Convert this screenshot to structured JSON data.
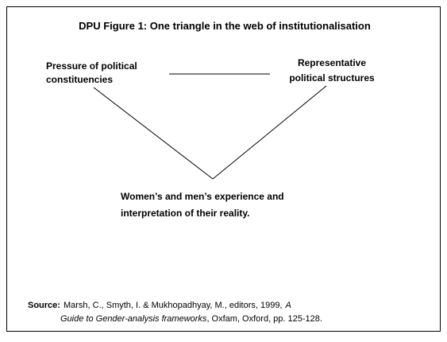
{
  "title": "DPU Figure 1: One triangle in the web of institutionalisation",
  "nodes": [
    {
      "lines": [
        "Pressure of political",
        "constituencies"
      ]
    },
    {
      "lines": [
        "Representative",
        "political structures"
      ]
    },
    {
      "lines": [
        "Women’s and men’s experience and",
        "interpretation of their reality."
      ]
    }
  ],
  "source": {
    "label": "Source:",
    "line1": "Marsh, C., Smyth, I. & Mukhopadhyay, M., editors, 1999,",
    "line1_italic": "A",
    "line2_italic": "Guide to Gender-analysis frameworks",
    "line2": ", Oxfam, Oxford, pp. 125-128."
  }
}
